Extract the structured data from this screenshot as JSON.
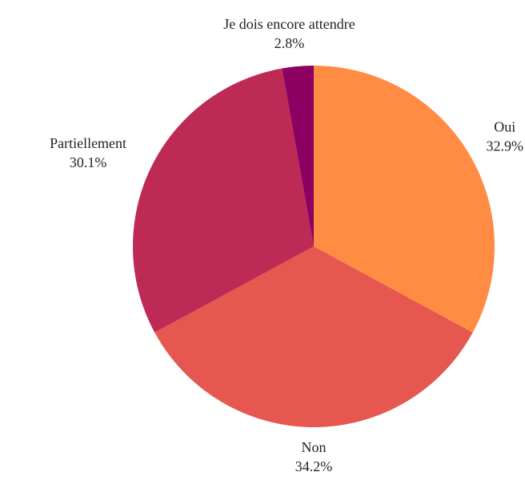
{
  "chart_data": {
    "type": "pie",
    "categories": [
      "Oui",
      "Non",
      "Partiellement",
      "Je dois encore attendre"
    ],
    "values": [
      32.9,
      34.2,
      30.1,
      2.8
    ],
    "value_labels": [
      "32.9%",
      "34.2%",
      "30.1%",
      "2.8%"
    ],
    "colors": [
      "#ff8c42",
      "#e5574f",
      "#bc2a55",
      "#8b0060"
    ]
  }
}
